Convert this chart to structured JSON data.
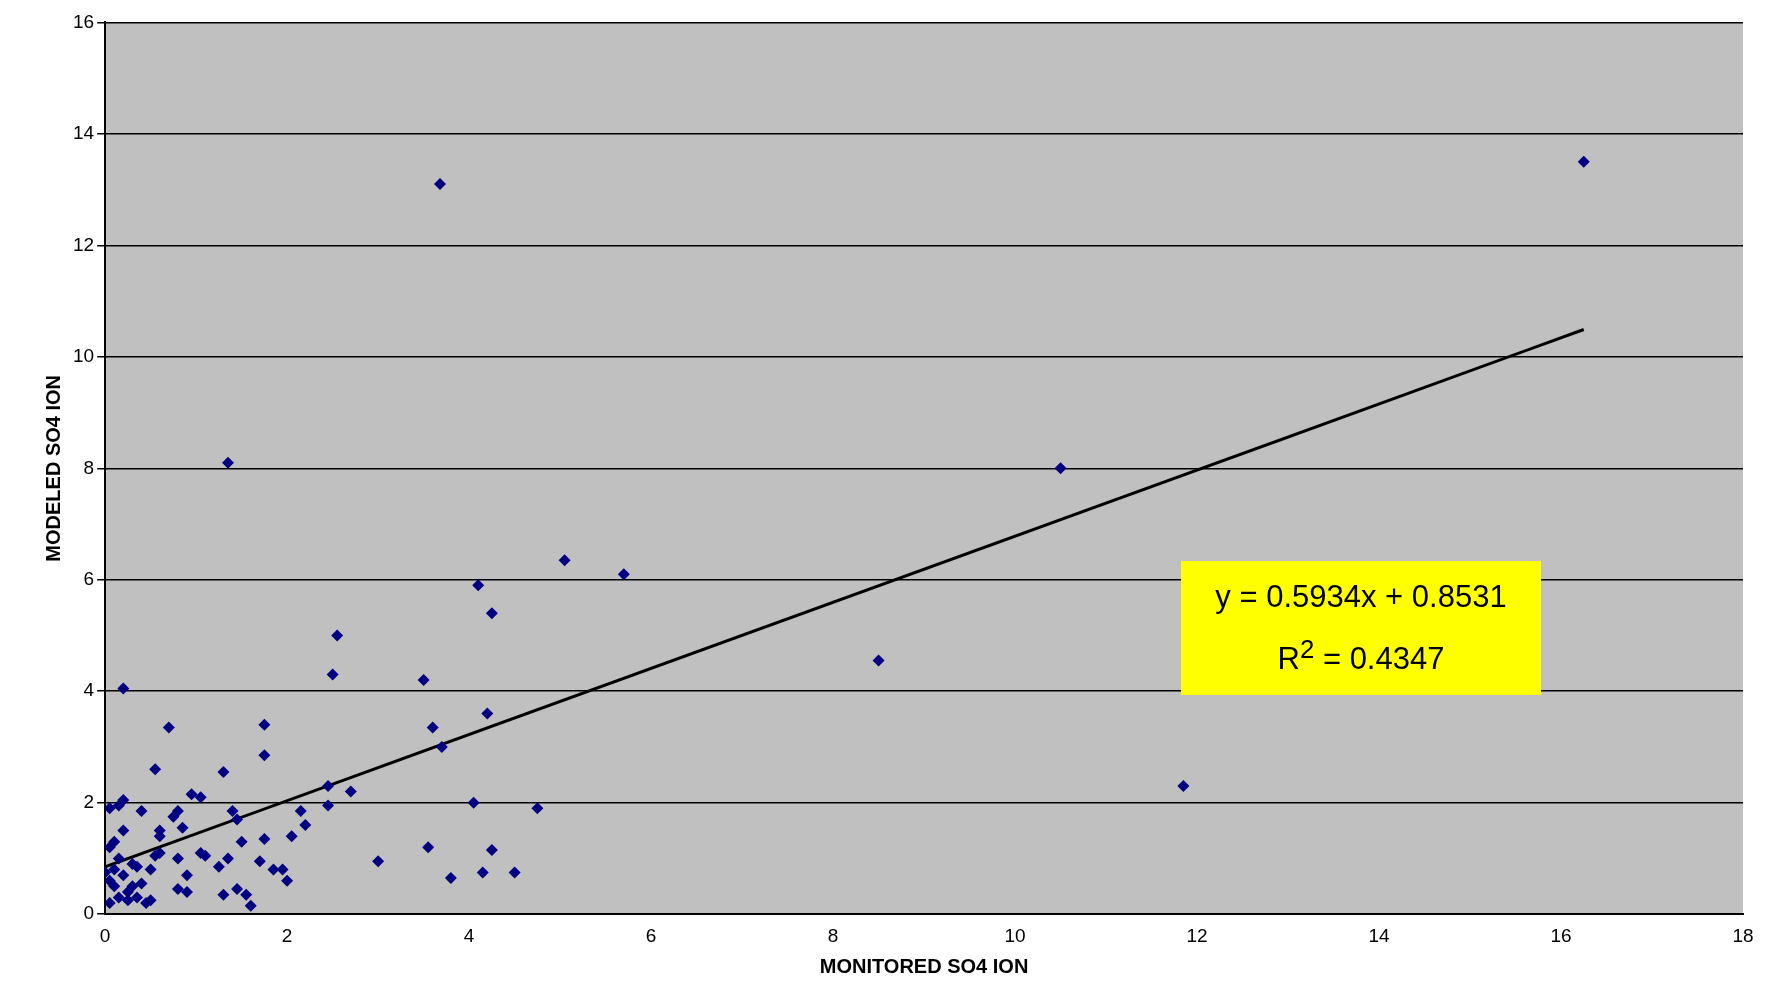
{
  "chart_data": {
    "type": "scatter",
    "xlabel": "MONITORED SO4 ION",
    "ylabel": "MODELED SO4 ION",
    "xlim": [
      0,
      18
    ],
    "xticks": [
      0,
      2,
      4,
      6,
      8,
      10,
      12,
      14,
      16,
      18
    ],
    "ylim": [
      0,
      16
    ],
    "yticks": [
      0,
      2,
      4,
      6,
      8,
      10,
      12,
      14,
      16
    ],
    "grid": "y",
    "legend": false,
    "marker": "diamond",
    "annotations": [
      "y = 0.5934x + 0.8531",
      "R$^{2}$ = 0.4347"
    ],
    "series": [
      {
        "type": "scatter",
        "color": "#000080",
        "x": [
          0.2,
          0.7,
          0.55,
          1.3,
          1.35,
          1.75,
          1.75,
          2.5,
          2.55,
          3.5,
          3.6,
          3.7,
          3.68,
          4.1,
          4.25,
          4.2,
          5.05,
          5.7,
          8.5,
          10.5,
          11.85,
          16.25,
          4.05,
          4.75,
          2.45,
          2.45,
          2.7,
          3.0,
          3.55,
          3.8,
          4.15,
          4.25,
          4.5,
          2.15,
          2.2,
          2.05,
          2.0,
          1.75,
          1.7,
          1.85,
          1.95,
          1.5,
          1.45,
          1.4,
          1.35,
          1.3,
          1.45,
          1.55,
          1.6,
          1.25,
          1.05,
          0.95,
          1.05,
          1.1,
          0.85,
          0.9,
          0.8,
          0.8,
          0.9,
          0.75,
          0.8,
          0.6,
          0.6,
          0.6,
          0.55,
          0.5,
          0.4,
          0.4,
          0.35,
          0.45,
          0.3,
          0.25,
          0.2,
          0.2,
          0.15,
          0.05,
          0.1,
          0.05,
          0.15,
          0.1,
          0.0,
          0.05,
          0.1,
          0.15,
          0.05,
          0.2,
          0.3,
          0.25,
          0.35,
          0.5
        ],
        "values": [
          4.05,
          3.35,
          2.6,
          2.55,
          8.1,
          3.4,
          2.85,
          4.3,
          5.0,
          4.2,
          3.35,
          3.0,
          13.1,
          5.9,
          5.4,
          3.6,
          6.35,
          6.1,
          4.55,
          8.0,
          2.3,
          13.5,
          2.0,
          1.9,
          2.3,
          1.95,
          2.2,
          0.95,
          1.2,
          0.65,
          0.75,
          1.15,
          0.75,
          1.85,
          1.6,
          1.4,
          0.6,
          1.35,
          0.95,
          0.8,
          0.8,
          1.3,
          1.7,
          1.85,
          1.0,
          0.35,
          0.45,
          0.35,
          0.15,
          0.85,
          2.1,
          2.15,
          1.1,
          1.05,
          1.55,
          0.7,
          1.0,
          0.45,
          0.4,
          1.75,
          1.85,
          1.5,
          1.4,
          1.1,
          1.05,
          0.8,
          1.85,
          0.55,
          0.3,
          0.2,
          0.5,
          0.4,
          2.05,
          1.5,
          1.95,
          1.9,
          1.3,
          1.2,
          1.0,
          0.8,
          0.75,
          0.6,
          0.5,
          0.3,
          0.2,
          0.7,
          0.9,
          0.25,
          0.85,
          0.25
        ]
      },
      {
        "type": "line",
        "color": "#000000",
        "x": [
          0,
          16.25
        ],
        "values": [
          0.85,
          10.49
        ],
        "marker": "none"
      }
    ]
  }
}
